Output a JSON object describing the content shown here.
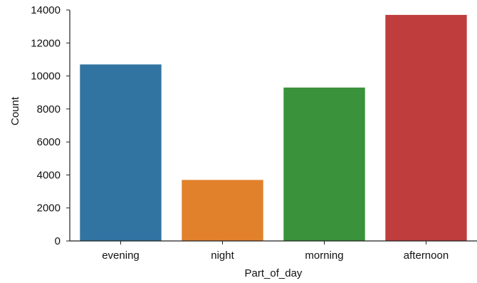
{
  "chart_data": {
    "type": "bar",
    "categories": [
      "evening",
      "night",
      "morning",
      "afternoon"
    ],
    "values": [
      10700,
      3700,
      9300,
      13700
    ],
    "colors": [
      "#3274a1",
      "#e1812c",
      "#3a923a",
      "#c03d3e"
    ],
    "xlabel": "Part_of_day",
    "ylabel": "Count",
    "ylim": [
      0,
      14000
    ],
    "yticks": [
      0,
      2000,
      4000,
      6000,
      8000,
      10000,
      12000,
      14000
    ],
    "grid": false,
    "legend": "none"
  }
}
